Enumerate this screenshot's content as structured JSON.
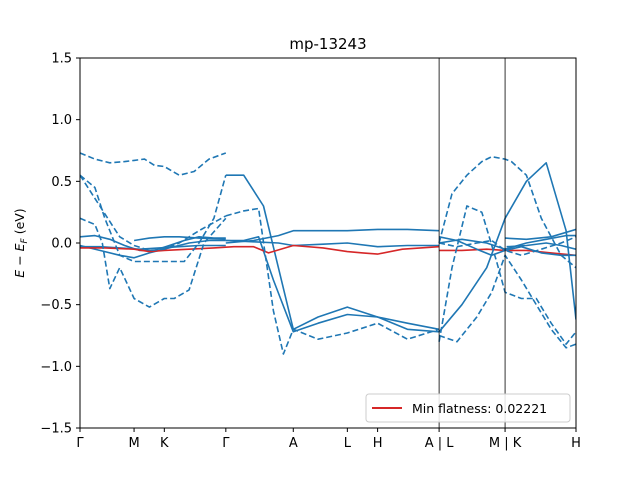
{
  "chart_data": {
    "type": "line",
    "title": "mp-13243",
    "xlabel": "",
    "ylabel": "E − E_F (eV)",
    "ylim": [
      -1.5,
      1.5
    ],
    "xlim": [
      0,
      10
    ],
    "grid": false,
    "legend_position": "lower-right",
    "y_ticks": [
      {
        "value": 1.5,
        "label": "1.5"
      },
      {
        "value": 1.0,
        "label": "1.0"
      },
      {
        "value": 0.5,
        "label": "0.5"
      },
      {
        "value": 0.0,
        "label": "0.0"
      },
      {
        "value": -0.5,
        "label": "−0.5"
      },
      {
        "value": -1.0,
        "label": "−1.0"
      },
      {
        "value": -1.5,
        "label": "−1.5"
      }
    ],
    "x_ticks": [
      {
        "value": 0.0,
        "label": "Γ"
      },
      {
        "value": 1.09,
        "label": "M"
      },
      {
        "value": 1.7,
        "label": "K"
      },
      {
        "value": 2.94,
        "label": "Γ"
      },
      {
        "value": 4.3,
        "label": "A"
      },
      {
        "value": 5.39,
        "label": "L"
      },
      {
        "value": 6.0,
        "label": "H"
      },
      {
        "value": 7.24,
        "label": "A | L"
      },
      {
        "value": 8.57,
        "label": "M | K"
      },
      {
        "value": 10.0,
        "label": "H"
      }
    ],
    "legend": [
      {
        "label": "Min flatness: 0.02221",
        "color": "#d62728"
      }
    ],
    "colors": {
      "bands": "#1f77b4",
      "flat_band": "#d62728"
    },
    "series": [
      {
        "style": "solid",
        "color": "#1f77b4",
        "x": [
          0,
          0.3,
          0.6,
          0.9,
          1.2,
          1.5,
          1.8,
          2.1,
          2.4,
          2.7,
          2.94
        ],
        "y": [
          0.05,
          0.06,
          0.03,
          -0.02,
          -0.06,
          -0.06,
          -0.02,
          0.02,
          0.05,
          0.04,
          0.04
        ]
      },
      {
        "style": "solid",
        "color": "#1f77b4",
        "x": [
          0,
          0.4,
          0.8,
          1.2,
          1.6,
          2.0,
          2.4,
          2.94
        ],
        "y": [
          -0.03,
          -0.03,
          -0.04,
          -0.05,
          -0.04,
          -0.03,
          -0.02,
          -0.02
        ]
      },
      {
        "style": "solid",
        "color": "#1f77b4",
        "x": [
          0,
          0.4,
          0.8,
          1.09,
          1.4,
          1.8,
          2.2,
          2.6,
          2.94
        ],
        "y": [
          -0.02,
          -0.06,
          -0.1,
          -0.12,
          -0.08,
          -0.04,
          0.0,
          0.02,
          0.02
        ]
      },
      {
        "style": "solid",
        "color": "#1f77b4",
        "x": [
          1.09,
          1.4,
          1.7,
          2.0,
          2.4,
          2.94
        ],
        "y": [
          0.02,
          0.04,
          0.05,
          0.05,
          0.04,
          0.03
        ]
      },
      {
        "style": "solid",
        "color": "#1f77b4",
        "x": [
          2.94,
          3.3,
          3.7,
          4.0,
          4.3,
          4.8,
          5.39,
          6.0,
          6.6,
          7.24
        ],
        "y": [
          0.55,
          0.55,
          0.3,
          -0.2,
          -0.7,
          -0.6,
          -0.52,
          -0.6,
          -0.7,
          -0.72
        ]
      },
      {
        "style": "solid",
        "color": "#1f77b4",
        "x": [
          2.94,
          3.3,
          3.6,
          3.9,
          4.3,
          4.8,
          5.39,
          6.0,
          6.6,
          7.24
        ],
        "y": [
          0.02,
          0.02,
          0.05,
          -0.3,
          -0.72,
          -0.65,
          -0.58,
          -0.6,
          -0.65,
          -0.7
        ]
      },
      {
        "style": "solid",
        "color": "#1f77b4",
        "x": [
          2.94,
          3.5,
          4.0,
          4.3,
          4.9,
          5.39,
          6.0,
          6.6,
          7.24
        ],
        "y": [
          0.0,
          0.02,
          0.06,
          0.1,
          0.1,
          0.1,
          0.11,
          0.11,
          0.1
        ]
      },
      {
        "style": "solid",
        "color": "#1f77b4",
        "x": [
          2.94,
          3.5,
          4.0,
          4.3,
          4.9,
          5.39,
          6.0,
          6.6,
          7.24
        ],
        "y": [
          0.02,
          0.01,
          0.0,
          -0.02,
          -0.01,
          0.0,
          -0.03,
          -0.02,
          -0.02
        ]
      },
      {
        "style": "solid",
        "color": "#d62728",
        "x": [
          0,
          0.5,
          1.09,
          1.4,
          1.7,
          2.2,
          2.7,
          3.1,
          3.5,
          3.8,
          4.3,
          4.9,
          5.39,
          5.7,
          6.0,
          6.5,
          7.24
        ],
        "y": [
          -0.04,
          -0.04,
          -0.05,
          -0.07,
          -0.06,
          -0.05,
          -0.04,
          -0.03,
          -0.03,
          -0.08,
          -0.02,
          -0.04,
          -0.07,
          -0.08,
          -0.09,
          -0.05,
          -0.03
        ]
      },
      {
        "style": "solid",
        "color": "#d62728",
        "x": [
          7.24,
          7.7,
          8.2,
          8.57,
          9.0,
          9.5,
          10.0
        ],
        "y": [
          -0.06,
          -0.06,
          -0.05,
          -0.06,
          -0.06,
          -0.08,
          -0.1
        ]
      },
      {
        "style": "solid",
        "color": "#1f77b4",
        "x": [
          7.24,
          7.6,
          8.0,
          8.3,
          8.57,
          8.9,
          9.3,
          9.7,
          10.0
        ],
        "y": [
          0.05,
          0.02,
          -0.05,
          -0.1,
          -0.06,
          -0.03,
          -0.08,
          -0.1,
          -0.1
        ]
      },
      {
        "style": "solid",
        "color": "#1f77b4",
        "x": [
          7.24,
          7.7,
          8.2,
          8.57,
          9.0,
          9.4,
          9.8,
          10.0
        ],
        "y": [
          0.0,
          0.03,
          0.0,
          -0.05,
          0.0,
          0.03,
          0.06,
          0.06
        ]
      },
      {
        "style": "solid",
        "color": "#1f77b4",
        "x": [
          8.57,
          9.0,
          9.5,
          10.0
        ],
        "y": [
          0.04,
          0.03,
          0.05,
          0.11
        ]
      },
      {
        "style": "solid",
        "color": "#1f77b4",
        "x": [
          7.24,
          7.7,
          8.2,
          8.57,
          9.0,
          9.4,
          9.8,
          10.0
        ],
        "y": [
          -0.72,
          -0.5,
          -0.2,
          0.2,
          0.5,
          0.65,
          0.1,
          -0.62
        ]
      },
      {
        "style": "solid",
        "color": "#1f77b4",
        "x": [
          8.6,
          9.0,
          9.4,
          9.7,
          10.0
        ],
        "y": [
          -0.03,
          -0.02,
          0.0,
          -0.02,
          -0.05
        ]
      },
      {
        "style": "dashed",
        "color": "#1f77b4",
        "x": [
          0,
          0.3,
          0.6,
          0.9,
          1.09,
          1.3,
          1.5,
          1.7,
          2.0,
          2.3,
          2.6,
          2.94
        ],
        "y": [
          0.73,
          0.68,
          0.65,
          0.66,
          0.67,
          0.68,
          0.63,
          0.62,
          0.55,
          0.58,
          0.68,
          0.73
        ]
      },
      {
        "style": "dashed",
        "color": "#1f77b4",
        "x": [
          0,
          0.3,
          0.5,
          0.8,
          1.09,
          1.4,
          1.7,
          2.1,
          2.4,
          2.7,
          2.94
        ],
        "y": [
          0.55,
          0.45,
          0.2,
          -0.1,
          -0.15,
          -0.15,
          -0.15,
          -0.15,
          0.0,
          0.2,
          0.55
        ]
      },
      {
        "style": "dashed",
        "color": "#1f77b4",
        "x": [
          0,
          0.3,
          0.45,
          0.6,
          0.8,
          1.09,
          1.4,
          1.7,
          1.9,
          2.2,
          2.5,
          2.94
        ],
        "y": [
          0.2,
          0.15,
          0.0,
          -0.37,
          -0.2,
          -0.45,
          -0.52,
          -0.45,
          -0.45,
          -0.38,
          0.0,
          0.2
        ]
      },
      {
        "style": "dashed",
        "color": "#1f77b4",
        "x": [
          0,
          0.4,
          0.8,
          1.09,
          1.4,
          1.7,
          2.0,
          2.4,
          2.94
        ],
        "y": [
          0.55,
          0.3,
          0.05,
          -0.02,
          -0.06,
          -0.05,
          0.0,
          0.1,
          0.22
        ]
      },
      {
        "style": "dashed",
        "color": "#1f77b4",
        "x": [
          2.94,
          3.3,
          3.6,
          3.9,
          4.1,
          4.3,
          4.8,
          5.39,
          6.0,
          6.6,
          7.24
        ],
        "y": [
          0.22,
          0.26,
          0.28,
          -0.55,
          -0.9,
          -0.7,
          -0.78,
          -0.73,
          -0.65,
          -0.78,
          -0.7
        ]
      },
      {
        "style": "dashed",
        "color": "#1f77b4",
        "x": [
          7.24,
          7.5,
          7.8,
          8.1,
          8.3,
          8.57,
          8.7,
          9.0,
          9.3,
          9.7,
          10.0
        ],
        "y": [
          0.0,
          0.4,
          0.55,
          0.66,
          0.7,
          0.68,
          0.66,
          0.55,
          0.2,
          -0.1,
          -0.2
        ]
      },
      {
        "style": "dashed",
        "color": "#1f77b4",
        "x": [
          7.24,
          7.5,
          7.8,
          8.1,
          8.4,
          8.57,
          8.9,
          9.2,
          9.5,
          9.8,
          10.0
        ],
        "y": [
          -0.8,
          -0.2,
          0.3,
          0.25,
          -0.15,
          -0.4,
          -0.45,
          -0.45,
          -0.65,
          -0.82,
          -0.72
        ]
      },
      {
        "style": "dashed",
        "color": "#1f77b4",
        "x": [
          7.24,
          7.6,
          8.0,
          8.3,
          8.57,
          8.9,
          9.2,
          9.5,
          9.8,
          10.0
        ],
        "y": [
          -0.75,
          -0.8,
          -0.6,
          -0.4,
          -0.1,
          -0.3,
          -0.5,
          -0.7,
          -0.85,
          -0.82
        ]
      },
      {
        "style": "dashed",
        "color": "#1f77b4",
        "x": [
          7.24,
          7.6,
          8.0,
          8.3,
          8.57,
          8.9,
          9.3,
          9.7,
          10.0
        ],
        "y": [
          0.0,
          -0.03,
          0.0,
          0.02,
          -0.06,
          -0.1,
          -0.05,
          0.0,
          0.05
        ]
      }
    ]
  }
}
